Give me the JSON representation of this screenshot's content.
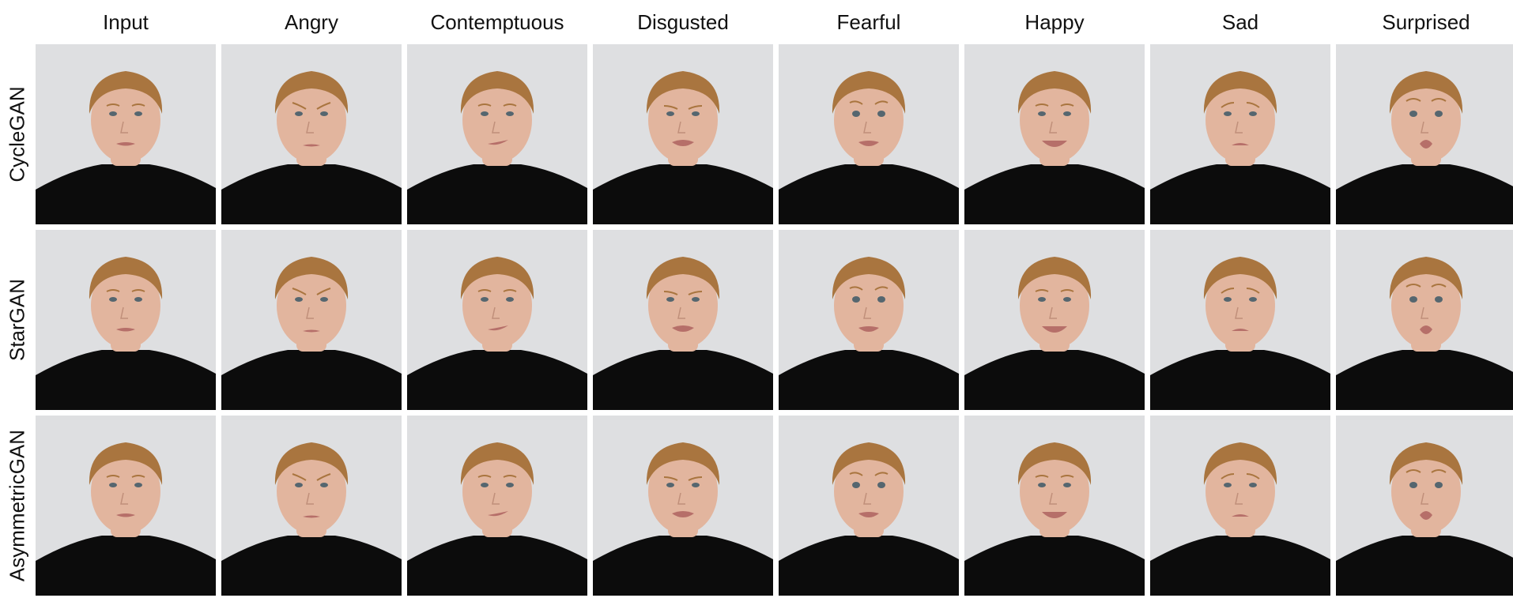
{
  "figure": {
    "columns": [
      "Input",
      "Angry",
      "Contemptuous",
      "Disgusted",
      "Fearful",
      "Happy",
      "Sad",
      "Surprised"
    ],
    "rows": [
      "CycleGAN",
      "StarGAN",
      "AsymmetricGAN"
    ],
    "colors": {
      "background": "#dedfe1",
      "skin": "#e2b59e",
      "hair": "#a9753f",
      "shirt": "#0c0c0c",
      "lips": "#b66f69",
      "eyes": "#55666f"
    }
  }
}
